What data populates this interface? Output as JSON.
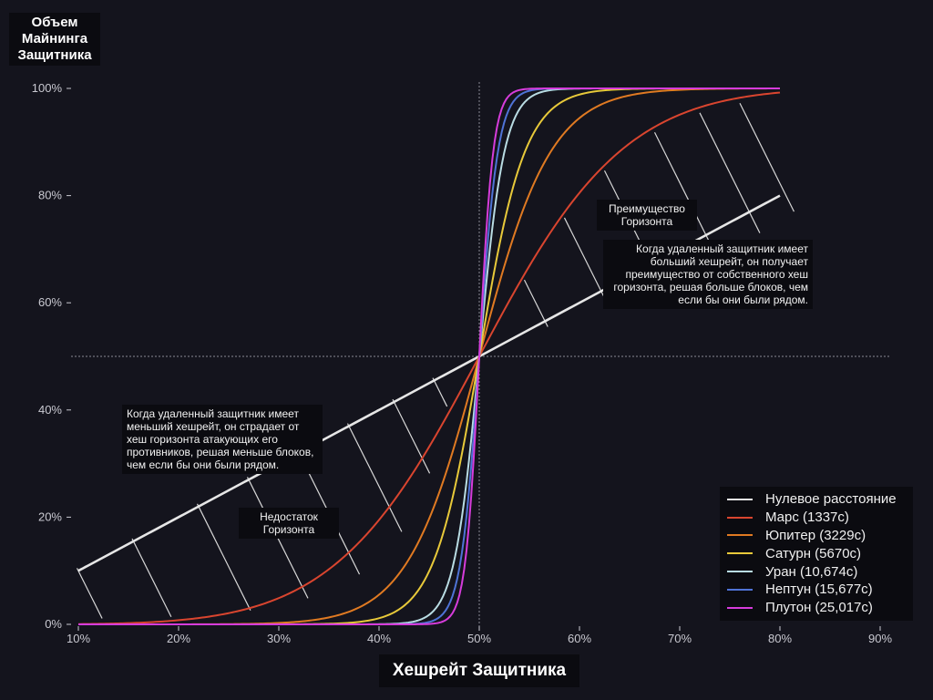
{
  "chart_data": {
    "type": "line",
    "title": "",
    "ylabel": "Объем Майнинга Защитника",
    "xlabel": "Хешрейт Защитника",
    "xlim": [
      0.1,
      0.9
    ],
    "ylim": [
      0,
      1
    ],
    "x_ticks": [
      "10%",
      "20%",
      "30%",
      "40%",
      "50%",
      "60%",
      "70%",
      "80%",
      "90%"
    ],
    "y_ticks": [
      "0%",
      "20%",
      "40%",
      "60%",
      "80%",
      "100%"
    ],
    "x_range_plotted": [
      0.1,
      0.8
    ],
    "grid": false,
    "reference_lines": {
      "x": 0.5,
      "y": 0.5
    },
    "legend_position": "bottom-right",
    "series": [
      {
        "name": "Нулевое расстояние",
        "color": "#e6e6e6",
        "steepness": 1
      },
      {
        "name": "Марс (1337с)",
        "color": "#d9452f",
        "steepness": 3.5
      },
      {
        "name": "Юпитер (3229с)",
        "color": "#e07a22",
        "steepness": 7
      },
      {
        "name": "Сатурн (5670с)",
        "color": "#e8c93a",
        "steepness": 11
      },
      {
        "name": "Уран (10,674с)",
        "color": "#b9dce3",
        "steepness": 20
      },
      {
        "name": "Нептун (15,677с)",
        "color": "#4f73d6",
        "steepness": 27
      },
      {
        "name": "Плутон (25,017с)",
        "color": "#d63cdb",
        "steepness": 36
      }
    ],
    "annotations": [
      {
        "id": "advantage_title",
        "text": "Преимущество Горизонта"
      },
      {
        "id": "advantage_body",
        "text": "Когда удаленный защитник имеет больший хешрейт, он получает преимущество от собственного хеш горизонта, решая больше блоков, чем если бы они были рядом."
      },
      {
        "id": "disadvantage_body",
        "text": "Когда удаленный защитник имеет меньший хешрейт, он страдает от хеш горизонта атакующих его противников, решая меньше блоков, чем если бы они были рядом."
      },
      {
        "id": "disadvantage_title",
        "text": "Недостаток Горизонта"
      }
    ]
  }
}
